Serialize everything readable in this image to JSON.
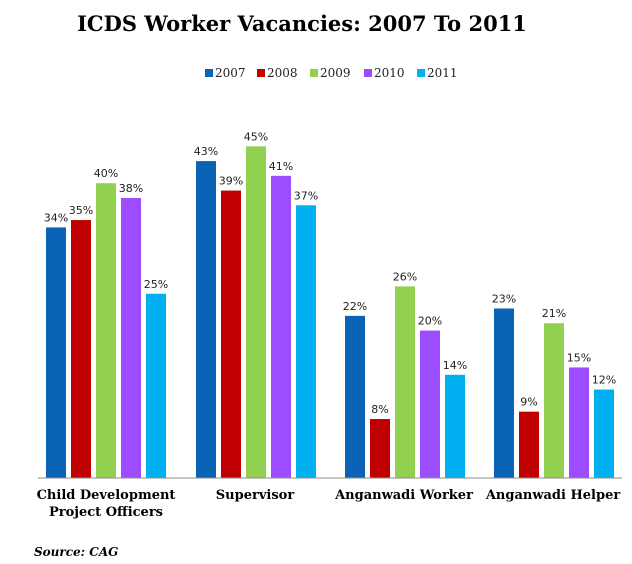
{
  "chart_data": {
    "type": "bar",
    "title": "ICDS Worker Vacancies: 2007 To 2011",
    "categories": [
      [
        "Child Development",
        "Project Officers"
      ],
      [
        "Supervisor"
      ],
      [
        "Anganwadi Worker"
      ],
      [
        "Anganwadi Helper"
      ]
    ],
    "series": [
      {
        "name": "2007",
        "color": "#0b63b6",
        "values": [
          34,
          43,
          22,
          23
        ]
      },
      {
        "name": "2008",
        "color": "#c00000",
        "values": [
          35,
          39,
          8,
          9
        ]
      },
      {
        "name": "2009",
        "color": "#92d050",
        "values": [
          40,
          45,
          26,
          21
        ]
      },
      {
        "name": "2010",
        "color": "#9b4dff",
        "values": [
          38,
          41,
          20,
          15
        ]
      },
      {
        "name": "2011",
        "color": "#00b0f0",
        "values": [
          25,
          37,
          14,
          12
        ]
      }
    ],
    "value_suffix": "%",
    "ylim": [
      0,
      50
    ],
    "legend_position": "top",
    "grid": false,
    "source": "Source: CAG"
  }
}
